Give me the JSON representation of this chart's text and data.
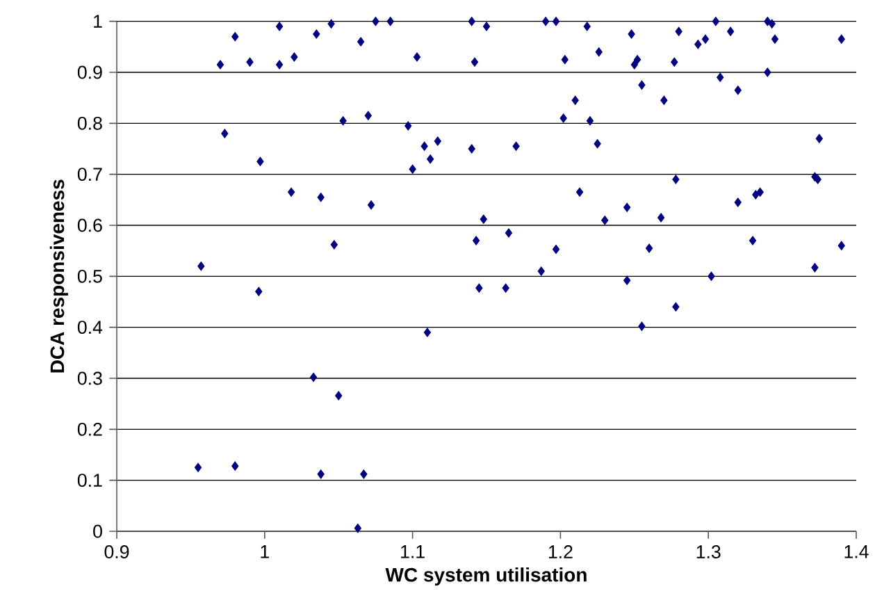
{
  "chart_data": {
    "type": "scatter",
    "xlabel": "WC system utilisation",
    "ylabel": "DCA responsiveness",
    "xlim": [
      0.9,
      1.4
    ],
    "ylim": [
      0,
      1
    ],
    "xticks": [
      0.9,
      1,
      1.1,
      1.2,
      1.3,
      1.4
    ],
    "yticks": [
      0,
      0.1,
      0.2,
      0.3,
      0.4,
      0.5,
      0.6,
      0.7,
      0.8,
      0.9,
      1
    ],
    "grid": "y",
    "marker": "diamond",
    "series": [
      {
        "color": "#000080",
        "x": [
          0.97,
          0.98,
          0.99,
          1.01,
          1.01,
          1.02,
          1.035,
          1.045,
          1.065,
          1.075,
          1.085,
          1.103,
          1.14,
          1.142,
          1.15,
          1.19,
          1.197,
          1.203,
          1.218,
          1.226,
          1.248,
          1.25,
          1.252,
          1.28,
          1.277,
          1.293,
          1.298,
          1.305,
          1.315,
          1.308,
          1.32,
          1.34,
          1.343,
          1.345,
          1.34,
          1.39,
          0.973,
          1.053,
          1.07,
          1.097,
          1.108,
          1.117,
          1.14,
          1.17,
          1.202,
          1.21,
          1.22,
          1.225,
          1.255,
          1.27,
          1.278,
          1.375,
          1.372,
          1.374,
          1.1,
          1.112,
          1.072,
          0.997,
          1.018,
          1.038,
          1.213,
          1.23,
          1.148,
          1.165,
          1.245,
          1.268,
          1.33,
          1.332,
          1.335,
          1.32,
          1.26,
          1.197,
          1.143,
          1.372,
          1.39,
          1.302,
          1.047,
          0.957,
          1.187,
          1.245,
          0.996,
          1.145,
          1.163,
          1.278,
          1.255,
          1.11,
          1.033,
          1.05,
          0.955,
          0.98,
          1.038,
          1.067,
          1.063
        ],
        "values": [
          0.915,
          0.97,
          0.92,
          0.99,
          0.915,
          0.93,
          0.975,
          0.995,
          0.96,
          1.0,
          1.0,
          0.93,
          1.0,
          0.92,
          0.99,
          1.0,
          1.0,
          0.925,
          0.99,
          0.94,
          0.975,
          0.915,
          0.925,
          0.98,
          0.92,
          0.955,
          0.965,
          1.0,
          0.98,
          0.89,
          0.865,
          1.0,
          0.995,
          0.965,
          0.9,
          0.965,
          0.78,
          0.805,
          0.815,
          0.795,
          0.755,
          0.765,
          0.75,
          0.755,
          0.81,
          0.845,
          0.805,
          0.76,
          0.875,
          0.845,
          0.69,
          0.77,
          0.695,
          0.69,
          0.71,
          0.73,
          0.64,
          0.725,
          0.665,
          0.655,
          0.665,
          0.61,
          0.612,
          0.585,
          0.635,
          0.615,
          0.57,
          0.66,
          0.665,
          0.645,
          0.555,
          0.553,
          0.57,
          0.517,
          0.56,
          0.5,
          0.562,
          0.52,
          0.51,
          0.492,
          0.47,
          0.477,
          0.477,
          0.44,
          0.402,
          0.39,
          0.302,
          0.266,
          0.125,
          0.128,
          0.112,
          0.112,
          0.006
        ]
      }
    ]
  }
}
